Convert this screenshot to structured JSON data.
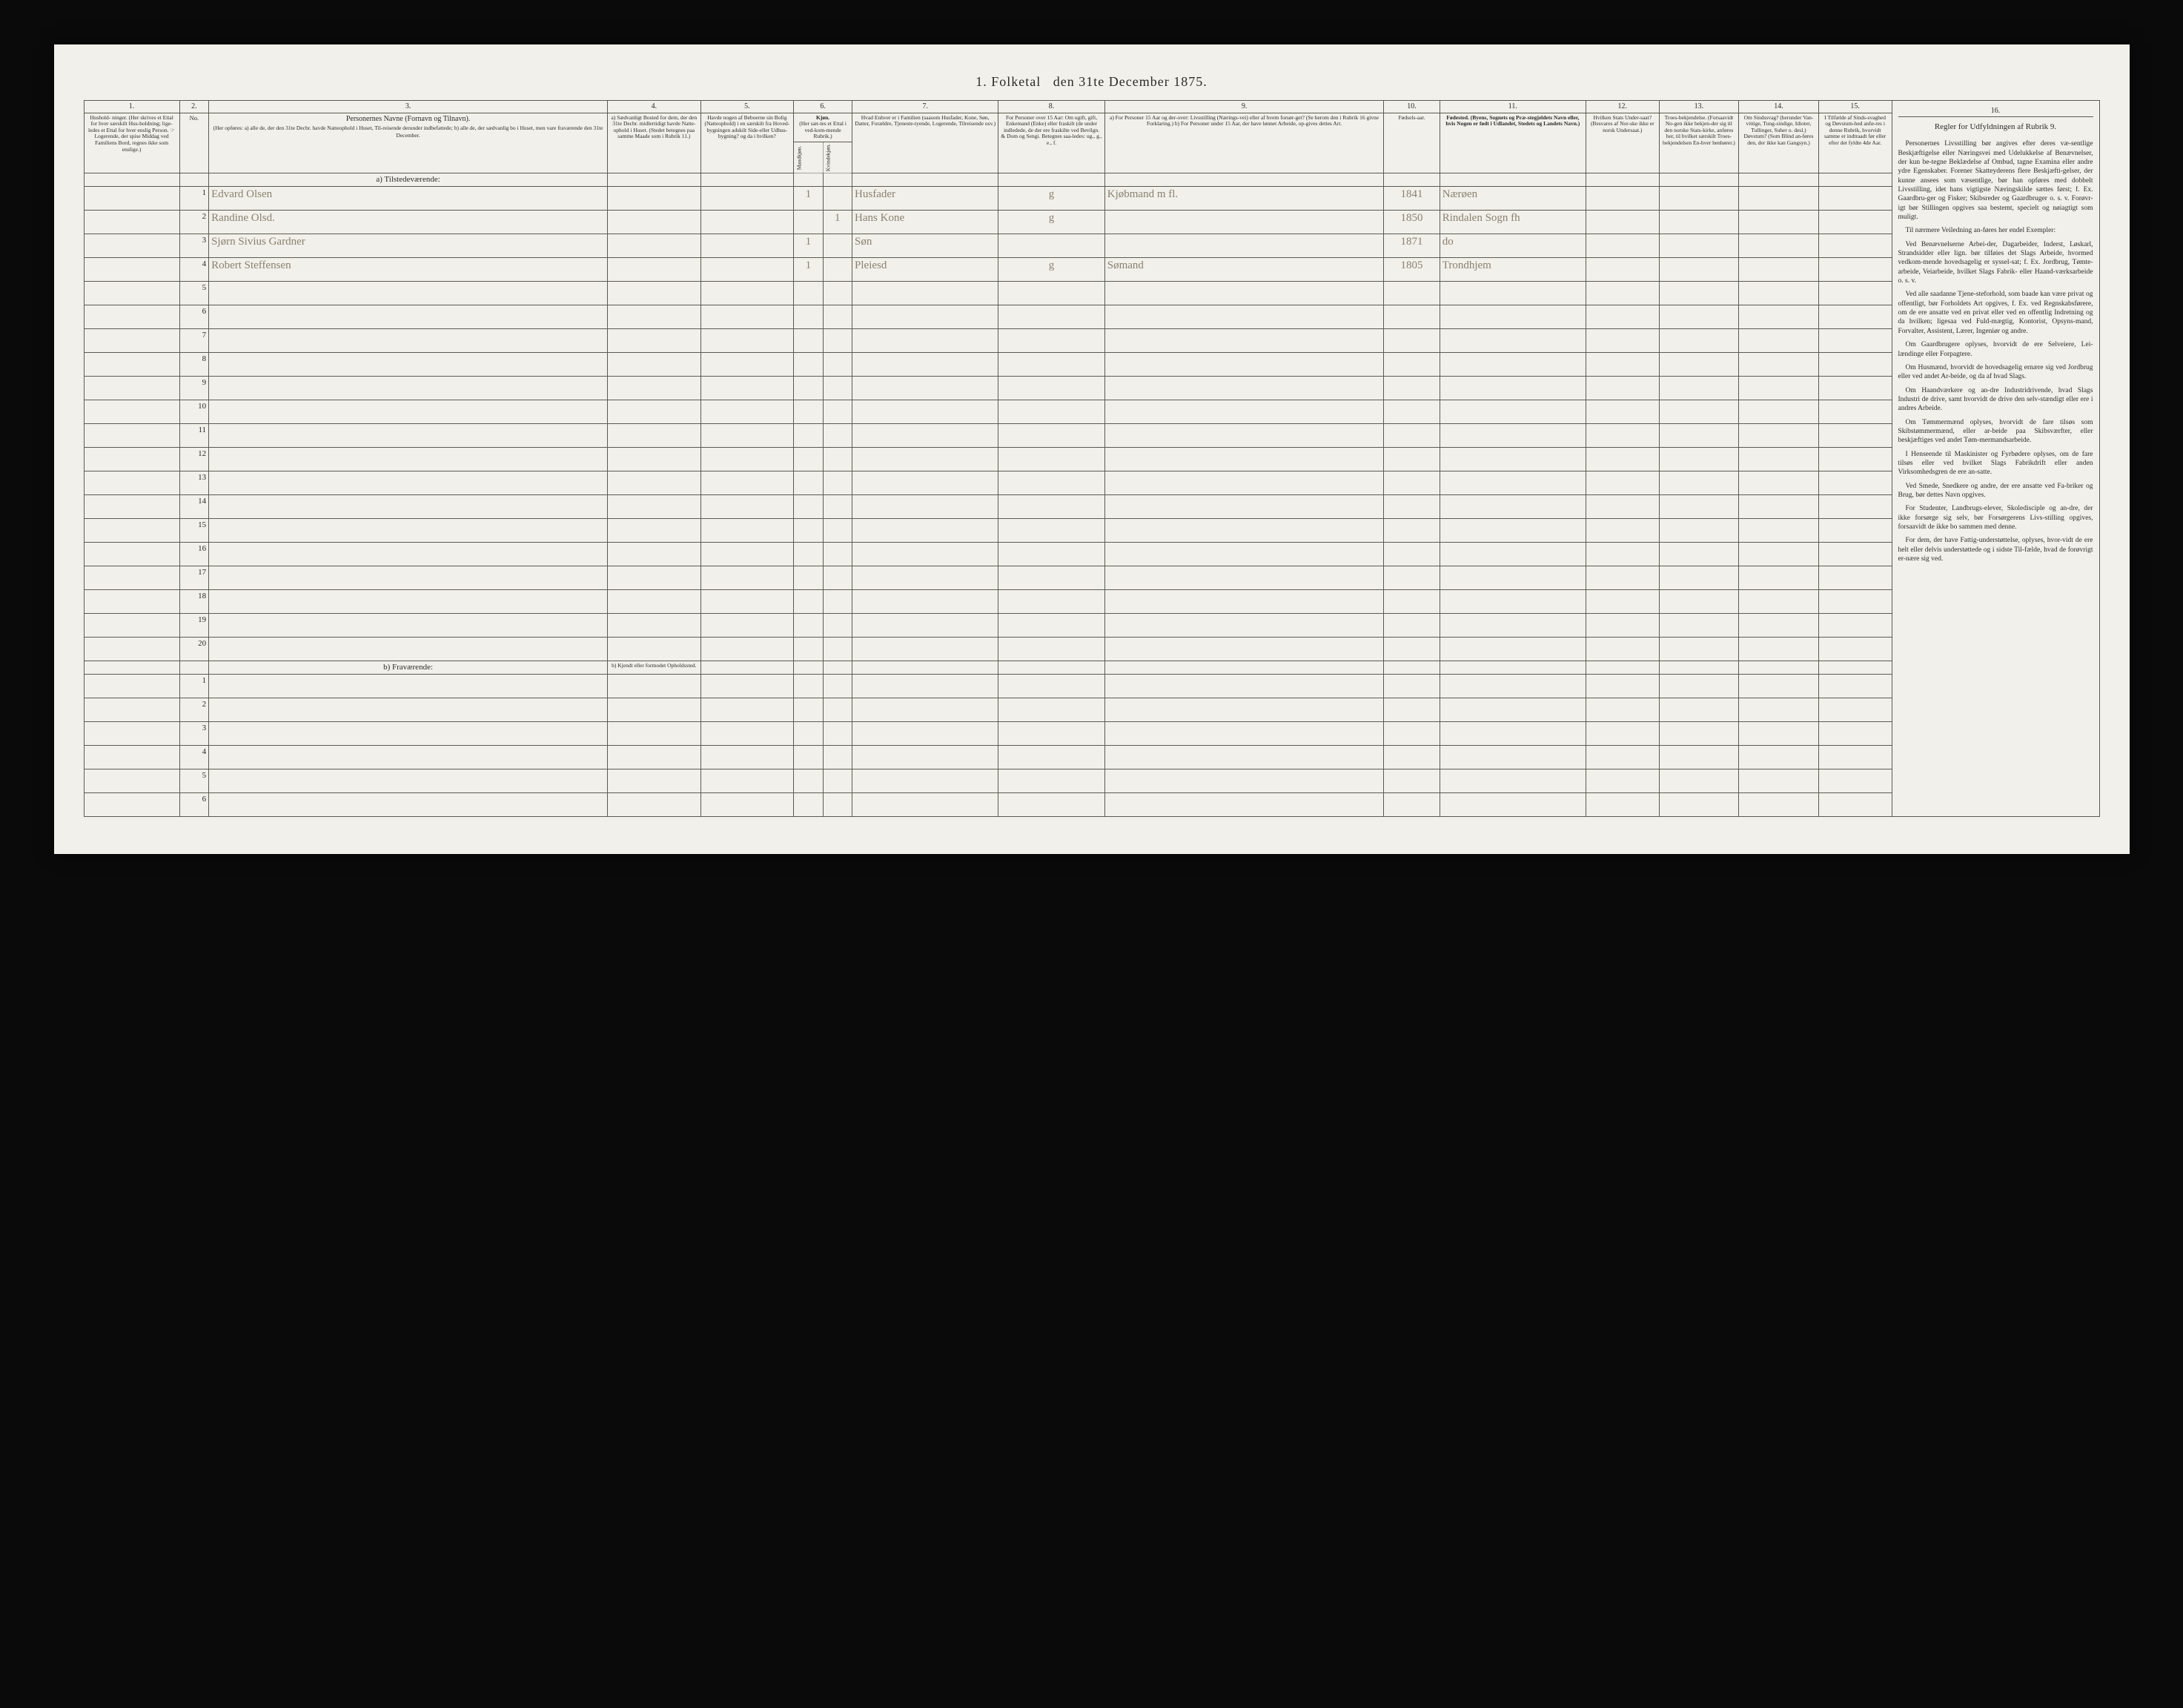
{
  "title_prefix": "1.  Folketal",
  "title_suffix": "den 31te December 1875.",
  "col_numbers": [
    "1.",
    "2.",
    "3.",
    "4.",
    "5.",
    "6.",
    "7.",
    "8.",
    "9.",
    "10.",
    "11.",
    "12.",
    "13.",
    "14.",
    "15.",
    "16."
  ],
  "headers": {
    "c1": "Hushold-\nninger.\n(Her skrives et Ettal for hver særskilt Hus-holdning; lige-ledes et Ettal for hver enslig Person.\n☞ Logerende, der spise Middag ved Familiens Bord, regnes ikke som enslige.)",
    "c2": "No.",
    "c3_title": "Personernes Navne (Fornavn og Tilnavn).",
    "c3_sub": "(Her opføres:\na) alle de, der den 31te Decbr. havde Natteophold i Huset, Til-reisende derunder indbefattede;\nb) alle de, der sædvanlig bo i Huset, men vare fraværende den 31te December.",
    "c4": "a) Sædvanligt Bosted for dem, der den 31te Decbr. midlertidigt havde Natte-ophold i Huset. (Stedet betegnes paa samme Maade som i Rubrik 11.)",
    "c5": "Havde nogen af Beboerne sin Bolig (Natteophold) i en særskilt fra Hoved-bygningen adskilt Side-eller Udhus-bygning? og da i hvilken?",
    "c6_top": "Kjøn.",
    "c6_sub": "(Her sæt-tes et Ettal i ved-kom-mende Rubrik.)",
    "c6a": "Mandkjøn.",
    "c6b": "Kvindekjøn.",
    "c7": "Hvad Enhver er i Familien\n(saasom Husfader, Kone, Søn, Datter, Forældre, Tjeneste-tyende, Logerende, Tilreisende osv.)",
    "c8": "For Personer over 15 Aar: Om ugift, gift, Enkemand (Enke) eller fraskilt (de under indledede, de der ere fraskilte ved Bevilgn. & Dom og Sengi. Betegnes saa-ledes: ug., g., e., f.",
    "c9": "a) For Personer 15 Aar og der-over: Livsstilling (Nærings-vei) eller af hvem forsør-get? (Se herom den i Rubrik 16 givne Forklaring.)\nb) For Personer under 15 Aar, der have lønnet Arbeide, op-gives dettes Art.",
    "c10": "Fødsels-aar.",
    "c11": "Fødested.\n(Byens, Sognets og Præ-stegjeldets Navn eller, hvis Nogen er født i Udlandet, Stedets og Landets Navn.)",
    "c12": "Hvilken Stats Under-saat?\n(Besvares af Nor-ske ikke er norsk Undersaat.)",
    "c13": "Troes-bekjendelse.\n(Forsaavidt No-gen ikke bekjen-der sig til den norske Stats-kirke, anføres her, til hvilket særskilt Troes-bekjendelsen En-hver henhører.)",
    "c14": "Om Sindssvag? (herunder Van-vittige, Tung-sindige, Idioter, Tullinger, Suher o. desl.) Døvstum? (Som Blind an-føres den, der ikke kan Gangsyn.)",
    "c15": "I Tilfælde af Sinds-svaghed og Døvstum-hed anfø-res i denne Rubrik, hvorvidt samme er indtraadt før eller efter det fyldte 4de Aar.",
    "c16": "Regler for Udfyldningen af Rubrik 9."
  },
  "section_a": "a) Tilstedeværende:",
  "section_b": "b) Fraværende:",
  "section_b_col4": "b) Kjendt eller formodet Opholdssted.",
  "rows_a_count": 20,
  "rows_b_count": 6,
  "entries": [
    {
      "row": 1,
      "name": "Edvard Olsen",
      "c6a": "1",
      "c7": "Husfader",
      "c8": "g",
      "c9": "Kjøbmand m fl.",
      "c10": "1841",
      "c11": "Nærøen"
    },
    {
      "row": 2,
      "name": "Randine Olsd.",
      "c6b": "1",
      "c7": "Hans Kone",
      "c8": "g",
      "c10": "1850",
      "c11": "Rindalen Sogn fh"
    },
    {
      "row": 3,
      "name": "Sjørn Sivius Gardner",
      "c6a": "1",
      "c7": "Søn",
      "c10": "1871",
      "c11": "do"
    },
    {
      "row": 4,
      "name": "Robert Steffensen",
      "c6a": "1",
      "c7": "Pleiesd",
      "c8": "g",
      "c9": "Sømand",
      "c10": "1805",
      "c11": "Trondhjem"
    }
  ],
  "instructions": {
    "p1": "Personernes Livsstilling bør angives efter deres væ-sentlige Beskjæftigelse eller Næringsvei med Udelukkelse af Benævnelser, der kun be-tegne Beklædelse af Ombud, tagne Examina eller andre ydre Egenskaber. Forener Skatteyderens flere Beskjæfti-gelser, der kunne ansees som væsentlige, bør han opføres med dobbelt Livsstilling, idet hans vigtigste Næringskilde sættes først; f. Ex. Gaardbru-ger og Fisker; Skibsreder og Gaardbruger o. s. v. Forøvr-igt bør Stillingen opgives saa bestemt, specielt og nøiagtigt som muligt.",
    "p2": "Til nærmere Veiledning an-føres her endel Exempler:",
    "p3": "Ved Benævnelserne Arbei-der, Dagarbeider, Inderst, Løskarl, Strandsidder eller lign. bør tilføies det Slags Arbeide, hvormed vedkom-mende hovedsagelig er syssel-sat; f. Ex. Jordbrug, Tømte-arbeide, Veiarbeide, hvilket Slags Fabrik- eller Haand-værksarbeide o. s. v.",
    "p4": "Ved alle saadanne Tjene-steforhold, som baade kan være privat og offentligt, bør Forholdets Art opgives, f. Ex. ved Regnskabsførere, om de ere ansatte ved en privat eller ved en offentlig Indretning og da hvilken; ligesaa ved Fuld-mægtig, Kontorist, Opsyns-mand, Forvalter, Assistent, Lærer, Ingeniør og andre.",
    "p5": "Om Gaardbrugere oplyses, hvorvidt de ere Selveiere, Lei-lændinge eller Forpagtere.",
    "p6": "Om Husmænd, hvorvidt de hovedsagelig ernære sig ved Jordbrug eller ved andet Ar-beide, og da af hvad Slags.",
    "p7": "Om Haandværkere og an-dre Industridrivende, hvad Slags Industri de drive, samt hvorvidt de drive den selv-stændigt eller ere i andres Arbeide.",
    "p8": "Om Tømmermænd oplyses, hvorvidt de fare tilsøs som Skibstømmermænd, eller ar-beide paa Skibsværfter, eller beskjæftiges ved andet Tøm-mermandsarbeide.",
    "p9": "I Henseende til Maskinister og Fyrbødere oplyses, om de fare tilsøs eller ved hvilket Slags Fabrikdrift eller anden Virksomhedsgren de ere an-satte.",
    "p10": "Ved Smede, Snedkere og andre, der ere ansatte ved Fa-briker og Brug, bør dettes Navn opgives.",
    "p11": "For Studenter, Landbrugs-elever, Skoledisciple og an-dre, der ikke forsørge sig selv, bør Forsørgerens Livs-stilling opgives, forsaavidt de ikke bo sammen med denne.",
    "p12": "For dem, der have Fattig-understøttelse, oplyses, hvor-vidt de ere helt eller delvis understøttede og i sidste Til-fælde, hvad de forøvrigt er-nære sig ved."
  }
}
